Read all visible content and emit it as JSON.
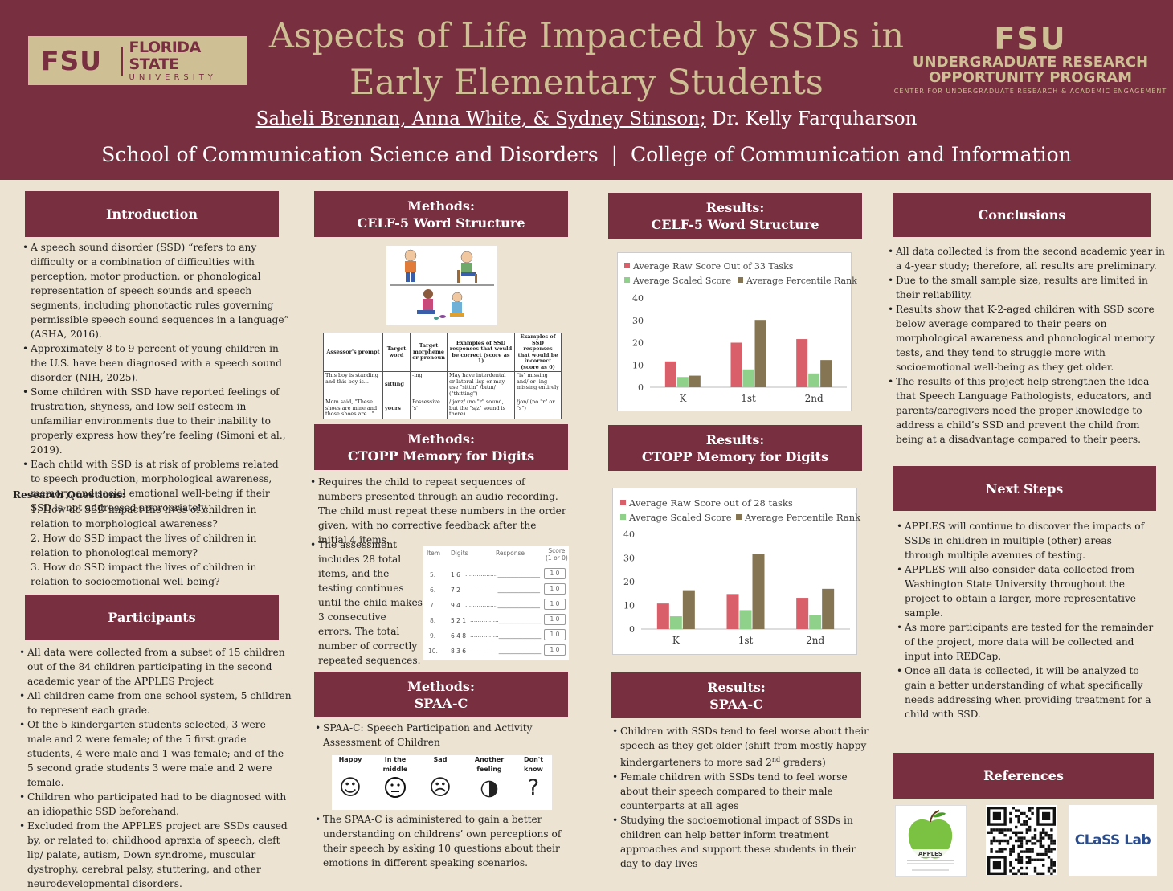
{
  "header": {
    "fsu_logo": {
      "mark": "FSU",
      "line1": "FLORIDA STATE",
      "line2": "UNIVERSITY"
    },
    "title_line1": "Aspects of Life Impacted by SSDs in",
    "title_line2": "Early Elementary Students",
    "authors_underlined": "Saheli Brennan, Anna White, & Sydney Stinson;",
    "authors_rest": " Dr. Kelly Farquharson",
    "affiliation": "School of Communication Science and Disorders  |  College of Communication and Information",
    "urop": {
      "mark": "FSU",
      "line1": "UNDERGRADUATE RESEARCH",
      "line2": "OPPORTUNITY PROGRAM",
      "line3": "CENTER FOR UNDERGRADUATE RESEARCH & ACADEMIC ENGAGEMENT"
    }
  },
  "introduction": {
    "heading": "Introduction",
    "bullets": [
      "A speech sound disorder (SSD) “refers to any difficulty or a combination of difficulties with perception, motor production, or phonological representation of speech sounds and speech segments, including phonotactic rules governing permissible speech sound sequences in a language” (ASHA, 2016).",
      "Approximately 8 to 9 percent of young children in the U.S. have been diagnosed with a speech sound disorder (NIH, 2025).",
      "Some children with SSD have reported feelings of frustration, shyness, and low self-esteem in unfamiliar environments due to their inability to properly express how they’re feeling (Simoni et al., 2019).",
      "Each child with SSD is at risk of problems related to speech production, morphological awareness, memory, and social emotional well-being if their SSD is not addressed appropriately."
    ],
    "rq_heading": "Research Questions:",
    "questions": [
      "1. How do SSD impact the lives of children in relation to morphological awareness?",
      "2. How do SSD impact the lives of children in relation to phonological memory?",
      "3. How do SSD impact the lives of children in relation to socioemotional well-being?"
    ]
  },
  "participants": {
    "heading": "Participants",
    "bullets": [
      "All data were collected from a subset of 15 children out of the 84 children participating in the second academic year of the APPLES Project",
      "All children came from one school system, 5 children to represent each grade.",
      "Of the 5 kindergarten students selected, 3 were male and 2 were female; of the 5 first grade students, 4 were male and 1 was female; and of the 5 second grade students 3 were male and 2 were female.",
      "Children who participated had to be diagnosed with an idiopathic SSD beforehand.",
      "Excluded from the APPLES project are SSDs caused by, or related to: childhood apraxia of speech, cleft lip/ palate, autism, Down syndrome, muscular dystrophy, cerebral palsy, stuttering, and other neurodevelopmental disorders."
    ]
  },
  "methods_celf": {
    "heading1": "Methods:",
    "heading2": "CELF-5 Word Structure",
    "table": {
      "headers": [
        "Assessor's prompt",
        "Target word",
        "Target morpheme or pronoun",
        "Examples of SSD responses that would be correct (score as 1)",
        "Examples of SSD responses that would be incorrect (score as 0)"
      ],
      "rows": [
        [
          "This boy is standing and this boy is...",
          "sitting",
          "-ing",
          "May have interdental or lateral lisp or may use \"sittin\" /bɪtɪn/ (\"thitting\")",
          "\"is\" missing and/ or -ing missing entirely"
        ],
        [
          "Mom said, \"These shoes are mine and those shoes are...\"",
          "yours",
          "Possessive 's'",
          "/ jonz/ (no \"r\" sound, but the \"s/z\" sound is there)",
          "/jon/ (no \"r\" or \"s\")"
        ]
      ]
    }
  },
  "methods_ctopp": {
    "heading1": "Methods:",
    "heading2": "CTOPP Memory for Digits",
    "bullet1": "Requires the child to repeat sequences of numbers presented through an audio recording. The child must repeat these numbers in the order given, with no corrective feedback after the initial 4 items.",
    "bullet2": "The assessment includes 28 total items, and the testing continues until the child makes 3 consecutive errors. The total number of correctly repeated sequences.",
    "form": {
      "col_item": "Item",
      "col_digits": "Digits",
      "col_response": "Response",
      "col_score1": "Score",
      "col_score2": "(1 or 0)",
      "rows": [
        {
          "item": "5.",
          "digits": "1 6"
        },
        {
          "item": "6.",
          "digits": "7 2"
        },
        {
          "item": "7.",
          "digits": "9 4"
        },
        {
          "item": "8.",
          "digits": "5 2 1"
        },
        {
          "item": "9.",
          "digits": "6 4 8"
        },
        {
          "item": "10.",
          "digits": "8 3 6"
        }
      ],
      "score_box": "1 0"
    }
  },
  "methods_spaa": {
    "heading1": "Methods:",
    "heading2": "SPAA-C",
    "bullet1": "SPAA-C:  Speech Participation and Activity Assessment of Children",
    "faces": [
      {
        "label": "Happy",
        "glyph": "☺"
      },
      {
        "label": "In the middle",
        "glyph": "😐"
      },
      {
        "label": "Sad",
        "glyph": "☹"
      },
      {
        "label": "Another feeling",
        "glyph": "◑"
      },
      {
        "label": "Don't know",
        "glyph": "?"
      }
    ],
    "bullet2": "The SPAA-C is administered to gain a better understanding on childrens’ own perceptions of their speech by asking 10 questions about their emotions in different speaking scenarios."
  },
  "results_celf": {
    "heading1": "Results:",
    "heading2": "CELF-5 Word Structure"
  },
  "results_ctopp": {
    "heading1": "Results:",
    "heading2": "CTOPP Memory for Digits"
  },
  "results_spaa": {
    "heading1": "Results:",
    "heading2": "SPAA-C",
    "bullet1a": "Children with SSDs tend to feel worse about their speech as they get older (shift from mostly happy kindergarteners to more sad 2",
    "bullet1sup": "nd",
    "bullet1b": " graders)",
    "bullet2": "Female children with SSDs tend to feel worse about their speech compared to their male counterparts at all ages",
    "bullet3": "Studying the socioemotional impact of SSDs in children can help better inform treatment approaches and support these students in their day-to-day lives"
  },
  "conclusions": {
    "heading": "Conclusions",
    "bullets": [
      "All data collected is from the second academic year in a 4-year study; therefore, all results are preliminary.",
      "Due to the small sample size, results are limited in their reliability.",
      "Results show that K-2-aged children with SSD score below average compared to their peers on morphological awareness and phonological memory tests, and they tend to struggle more with socioemotional well-being as they get older.",
      "The results of this project help strengthen the idea that Speech Language Pathologists, educators, and parents/caregivers need the proper knowledge to address a child’s SSD and prevent the child from being at a disadvantage compared to their peers."
    ]
  },
  "next_steps": {
    "heading": "Next Steps",
    "bullets": [
      "APPLES will continue to discover the impacts of SSDs in children in multiple (other) areas through multiple avenues of testing.",
      "APPLES will also consider data collected from Washington State University throughout the project to obtain a larger, more representative sample.",
      "As more participants are tested for the remainder of the project, more data will be collected and input into REDCap.",
      "Once all data is collected, it will be analyzed to gain a better understanding of what specifically needs addressing when providing treatment for a child with SSD."
    ]
  },
  "references": {
    "heading": "References",
    "apples_logo": "APPLES",
    "class_logo": "CLaSS Lab"
  },
  "colors": {
    "maroon": "#782f40",
    "gold": "#cebf94",
    "cream": "#ece3d2",
    "raw": "#d9606a",
    "scaled": "#8fd18a",
    "percentile": "#857552"
  },
  "chart_data": [
    {
      "type": "bar",
      "title": "",
      "categories": [
        "K",
        "1st",
        "2nd"
      ],
      "series": [
        {
          "name": "Average Raw Score Out of 33 Tasks",
          "values": [
            11.6,
            20.0,
            21.6
          ]
        },
        {
          "name": "Average Scaled Score",
          "values": [
            4.6,
            8.0,
            6.2
          ]
        },
        {
          "name": "Average Percentile Rank",
          "values": [
            5.2,
            30.2,
            12.2
          ]
        }
      ],
      "ylim": [
        0,
        40
      ],
      "yticks": [
        0,
        10,
        20,
        30,
        40
      ],
      "grid": false,
      "legend": "top"
    },
    {
      "type": "bar",
      "title": "",
      "categories": [
        "K",
        "1st",
        "2nd"
      ],
      "series": [
        {
          "name": "Average Raw Score out of 28 tasks",
          "values": [
            10.8,
            14.8,
            13.2
          ]
        },
        {
          "name": "Average Scaled Score",
          "values": [
            5.4,
            8.0,
            5.8
          ]
        },
        {
          "name": "Average Percentile Rank",
          "values": [
            16.4,
            31.8,
            17.0
          ]
        }
      ],
      "ylim": [
        0,
        40
      ],
      "yticks": [
        0,
        10,
        20,
        30,
        40
      ],
      "grid": false,
      "legend": "top"
    }
  ]
}
